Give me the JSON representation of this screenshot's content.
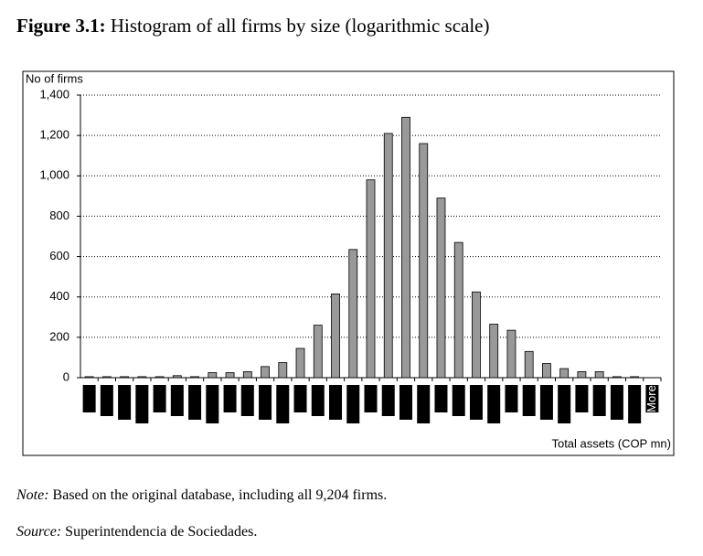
{
  "figure_label": "Figure 3.1:",
  "chart_data": {
    "type": "bar",
    "title": "Histogram of all firms by size (logarithmic scale)",
    "ylabel": "No of firms",
    "xlabel": "Total assets (COP mn)",
    "categories": [
      null,
      null,
      null,
      null,
      null,
      null,
      null,
      null,
      null,
      null,
      null,
      null,
      null,
      null,
      null,
      null,
      null,
      null,
      null,
      null,
      null,
      null,
      null,
      null,
      null,
      null,
      null,
      null,
      null,
      null,
      null,
      null,
      "More"
    ],
    "values": [
      5,
      5,
      5,
      5,
      5,
      10,
      5,
      25,
      25,
      30,
      55,
      75,
      145,
      260,
      415,
      635,
      980,
      1210,
      1290,
      1160,
      890,
      670,
      425,
      265,
      235,
      130,
      70,
      45,
      30,
      30,
      5,
      5,
      0
    ],
    "color": "#999999",
    "ylim": [
      0,
      1400
    ],
    "yticks": [
      0,
      200,
      400,
      600,
      800,
      {
        "value": 1000,
        "label": "1,000"
      },
      {
        "value": 1200,
        "label": "1,200"
      },
      {
        "value": 1400,
        "label": "1,400"
      }
    ],
    "grid": true
  },
  "note": {
    "label": "Note:",
    "text": "Based on the original database, including all 9,204 firms."
  },
  "source": {
    "label": "Source:",
    "text": "Superintendencia de Sociedades."
  }
}
